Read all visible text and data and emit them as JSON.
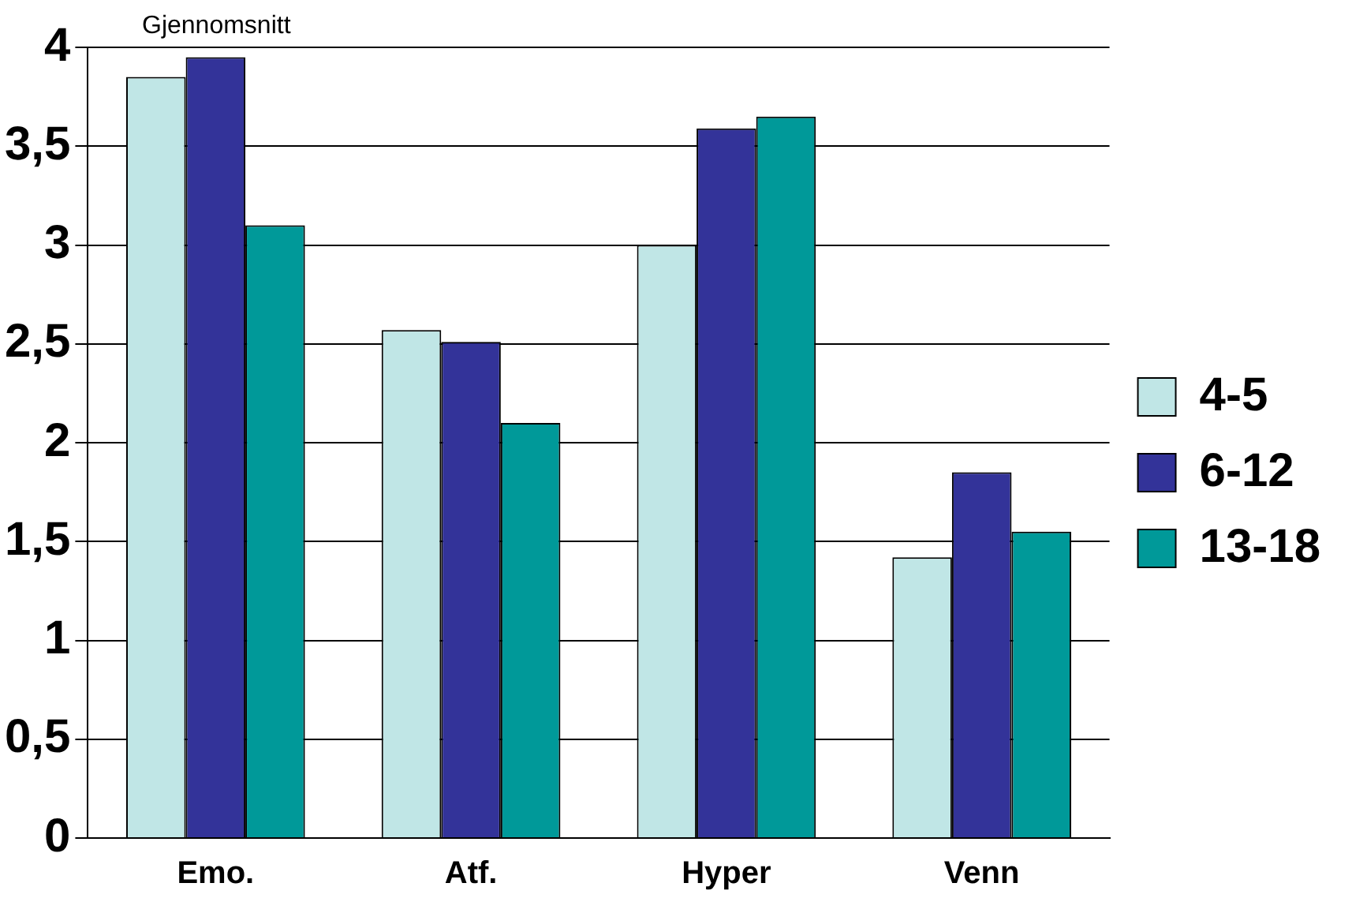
{
  "chart_data": {
    "type": "bar",
    "ylabel": "Gjennomsnitt",
    "categories": [
      "Emo.",
      "Atf.",
      "Hyper",
      "Venn"
    ],
    "series": [
      {
        "name": "4-5",
        "color": "#c0e6e6",
        "values": [
          3.85,
          2.57,
          3.0,
          1.42
        ]
      },
      {
        "name": "6-12",
        "color": "#333399",
        "values": [
          3.95,
          2.51,
          3.59,
          1.85
        ]
      },
      {
        "name": "13-18",
        "color": "#009999",
        "values": [
          3.1,
          2.1,
          3.65,
          1.55
        ]
      }
    ],
    "ylim": [
      0,
      4
    ],
    "yticks": [
      0,
      {
        "value": 0.5,
        "label": "0,5"
      },
      1,
      {
        "value": 1.5,
        "label": "1,5"
      },
      2,
      {
        "value": 2.5,
        "label": "2,5"
      },
      3,
      {
        "value": 3.5,
        "label": "3,5"
      },
      4
    ],
    "grid": "y",
    "legend": "right"
  }
}
